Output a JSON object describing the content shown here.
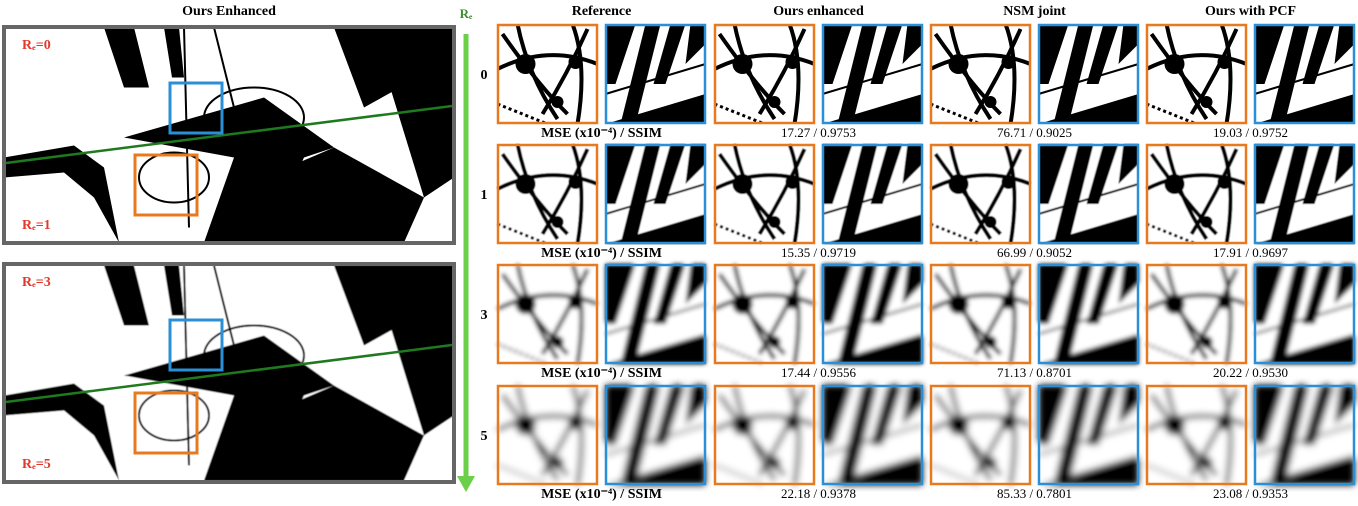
{
  "left_panel": {
    "title": "Ours Enhanced",
    "labels": [
      "Rₑ=0",
      "Rₑ=1",
      "Rₑ=3",
      "Rₑ=5"
    ]
  },
  "axis_label": "Rₑ",
  "columns": [
    "Reference",
    "Ours enhanced",
    "NSM joint",
    "Ours with PCF"
  ],
  "rows": [
    {
      "label": "0",
      "metric_label": "MSE (x10⁻⁴) / SSIM",
      "values": [
        "17.27 / 0.9753",
        "76.71 / 0.9025",
        "19.03 / 0.9752"
      ]
    },
    {
      "label": "1",
      "metric_label": "MSE (x10⁻⁴) / SSIM",
      "values": [
        "15.35 / 0.9719",
        "66.99 / 0.9052",
        "17.91 / 0.9697"
      ]
    },
    {
      "label": "3",
      "metric_label": "MSE (x10⁻⁴) / SSIM",
      "values": [
        "17.44 / 0.9556",
        "71.13 / 0.8701",
        "20.22 / 0.9530"
      ]
    },
    {
      "label": "5",
      "metric_label": "MSE (x10⁻⁴) / SSIM",
      "values": [
        "22.18 / 0.9378",
        "85.33 / 0.7801",
        "23.08 / 0.9353"
      ]
    }
  ]
}
